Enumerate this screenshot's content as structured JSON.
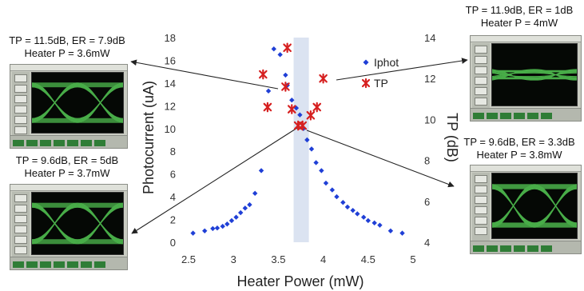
{
  "chart_data": {
    "type": "scatter",
    "xlabel": "Heater Power (mW)",
    "ylabel_left": "Photocurrent (uA)",
    "ylabel_right": "TP (dB)",
    "xlim": [
      2.5,
      5
    ],
    "ylim_left": [
      0,
      18
    ],
    "ylim_right": [
      4,
      14
    ],
    "xticks": [
      "2.5",
      "3",
      "3.5",
      "4",
      "4.5",
      "5"
    ],
    "yticks_left": [
      "0",
      "2",
      "4",
      "6",
      "8",
      "10",
      "12",
      "14",
      "16",
      "18"
    ],
    "yticks_right": [
      "4",
      "6",
      "8",
      "10",
      "12",
      "14"
    ],
    "highlight_band": [
      3.67,
      3.84
    ],
    "series": [
      {
        "name": "Iphot",
        "axis": "left",
        "color": "#1f3fd6",
        "marker": "diamond",
        "points": [
          [
            2.55,
            0.8
          ],
          [
            2.68,
            1.0
          ],
          [
            2.77,
            1.2
          ],
          [
            2.82,
            1.25
          ],
          [
            2.88,
            1.4
          ],
          [
            2.93,
            1.6
          ],
          [
            2.98,
            1.9
          ],
          [
            3.03,
            2.2
          ],
          [
            3.08,
            2.6
          ],
          [
            3.13,
            3.0
          ],
          [
            3.18,
            3.3
          ],
          [
            3.24,
            4.3
          ],
          [
            3.31,
            6.3
          ],
          [
            3.39,
            13.3
          ],
          [
            3.45,
            17.0
          ],
          [
            3.52,
            16.5
          ],
          [
            3.58,
            14.7
          ],
          [
            3.6,
            13.8
          ],
          [
            3.65,
            12.5
          ],
          [
            3.7,
            11.8
          ],
          [
            3.74,
            11.2
          ],
          [
            3.78,
            10.0
          ],
          [
            3.82,
            9.0
          ],
          [
            3.87,
            8.2
          ],
          [
            3.92,
            7.0
          ],
          [
            3.98,
            6.3
          ],
          [
            4.03,
            5.2
          ],
          [
            4.1,
            4.6
          ],
          [
            4.15,
            4.0
          ],
          [
            4.22,
            3.5
          ],
          [
            4.27,
            3.1
          ],
          [
            4.33,
            2.8
          ],
          [
            4.38,
            2.5
          ],
          [
            4.45,
            2.2
          ],
          [
            4.5,
            1.9
          ],
          [
            4.57,
            1.7
          ],
          [
            4.63,
            1.5
          ],
          [
            4.75,
            1.0
          ],
          [
            4.88,
            0.8
          ]
        ]
      },
      {
        "name": "TP",
        "axis": "right",
        "color": "#d62020",
        "marker": "asterisk",
        "points": [
          [
            3.33,
            12.2
          ],
          [
            3.38,
            10.6
          ],
          [
            3.58,
            11.6
          ],
          [
            3.6,
            13.5
          ],
          [
            3.65,
            10.5
          ],
          [
            3.72,
            9.7
          ],
          [
            3.77,
            9.7
          ],
          [
            3.86,
            10.2
          ],
          [
            3.93,
            10.6
          ],
          [
            4.0,
            12.0
          ]
        ]
      }
    ],
    "legend": "top-right"
  },
  "annotations": [
    {
      "line1": "TP = 11.5dB, ER = 7.9dB",
      "line2": "Heater P = 3.6mW"
    },
    {
      "line1": "TP = 9.6dB, ER = 5dB",
      "line2": "Heater P = 3.7mW"
    },
    {
      "line1": "TP = 11.9dB, ER = 1dB",
      "line2": "Heater P = 4mW"
    },
    {
      "line1": "TP = 9.6dB, ER = 3.3dB",
      "line2": "Heater P = 3.8mW"
    }
  ],
  "scope_screens": [
    {
      "trace_color": "#5fe35f",
      "eye": "wide"
    },
    {
      "trace_color": "#5fe35f",
      "eye": "wide"
    },
    {
      "trace_color": "#5fe35f",
      "eye": "flat"
    },
    {
      "trace_color": "#5fe35f",
      "eye": "wide"
    }
  ]
}
